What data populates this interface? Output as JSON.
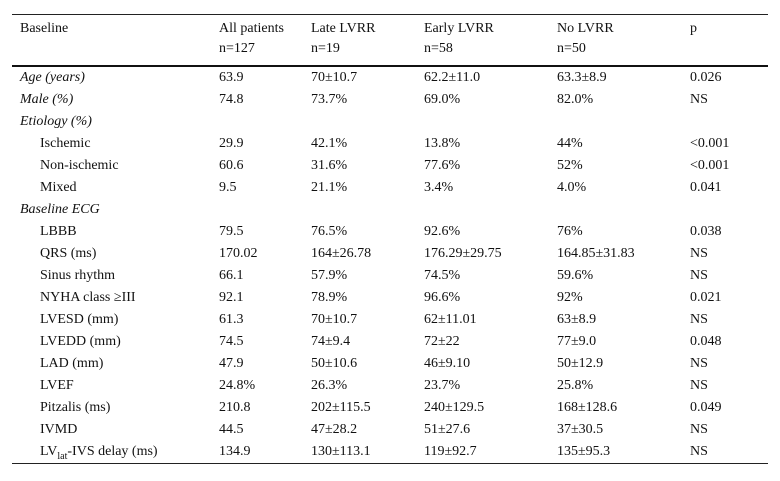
{
  "table": {
    "header": [
      [
        "Baseline"
      ],
      [
        "All patients",
        "n=127"
      ],
      [
        "Late LVRR",
        "n=19"
      ],
      [
        "Early LVRR",
        "n=58"
      ],
      [
        "No LVRR",
        "n=50"
      ],
      [
        "p"
      ]
    ],
    "rows": [
      {
        "label": "Age (years)",
        "indent": false,
        "values": [
          "63.9",
          "70±10.7",
          "62.2±11.0",
          "63.3±8.9",
          "0.026"
        ]
      },
      {
        "label": "Male (%)",
        "indent": false,
        "values": [
          "74.8",
          "73.7%",
          "69.0%",
          "82.0%",
          "NS"
        ]
      },
      {
        "label": "Etiology (%)",
        "indent": false,
        "values": []
      },
      {
        "label": "Ischemic",
        "indent": true,
        "values": [
          "29.9",
          "42.1%",
          "13.8%",
          "44%",
          "<0.001"
        ]
      },
      {
        "label": "Non-ischemic",
        "indent": true,
        "values": [
          "60.6",
          "31.6%",
          "77.6%",
          "52%",
          "<0.001"
        ]
      },
      {
        "label": "Mixed",
        "indent": true,
        "values": [
          "9.5",
          "21.1%",
          "3.4%",
          "4.0%",
          "0.041"
        ]
      },
      {
        "label": "Baseline ECG",
        "indent": false,
        "values": []
      },
      {
        "label": "LBBB",
        "indent": true,
        "values": [
          "79.5",
          "76.5%",
          "92.6%",
          "76%",
          "0.038"
        ]
      },
      {
        "label": "QRS (ms)",
        "indent": true,
        "values": [
          "170.02",
          "164±26.78",
          "176.29±29.75",
          "164.85±31.83",
          "NS"
        ]
      },
      {
        "label": "Sinus rhythm",
        "indent": true,
        "values": [
          "66.1",
          "57.9%",
          "74.5%",
          "59.6%",
          "NS"
        ]
      },
      {
        "label": "NYHA class ≥III",
        "indent": true,
        "values": [
          "92.1",
          "78.9%",
          "96.6%",
          "92%",
          "0.021"
        ]
      },
      {
        "label": "LVESD (mm)",
        "indent": true,
        "values": [
          "61.3",
          "70±10.7",
          "62±11.01",
          "63±8.9",
          "NS"
        ]
      },
      {
        "label": "LVEDD (mm)",
        "indent": true,
        "values": [
          "74.5",
          "74±9.4",
          "72±22",
          "77±9.0",
          "0.048"
        ]
      },
      {
        "label": "LAD (mm)",
        "indent": true,
        "values": [
          "47.9",
          "50±10.6",
          "46±9.10",
          "50±12.9",
          "NS"
        ]
      },
      {
        "label": "LVEF",
        "indent": true,
        "values": [
          "24.8%",
          "26.3%",
          "23.7%",
          "25.8%",
          "NS"
        ]
      },
      {
        "label": "Pitzalis (ms)",
        "indent": true,
        "values": [
          "210.8",
          "202±115.5",
          "240±129.5",
          "168±128.6",
          "0.049"
        ]
      },
      {
        "label": "IVMD",
        "indent": true,
        "values": [
          "44.5",
          "47±28.2",
          "51±27.6",
          "37±30.5",
          "NS"
        ]
      },
      {
        "label": {
          "main": "LV",
          "sub": "lat",
          "rest": "-IVS delay (ms)"
        },
        "indent": true,
        "values": [
          "134.9",
          "130±113.1",
          "119±92.7",
          "135±95.3",
          "NS"
        ]
      }
    ]
  }
}
